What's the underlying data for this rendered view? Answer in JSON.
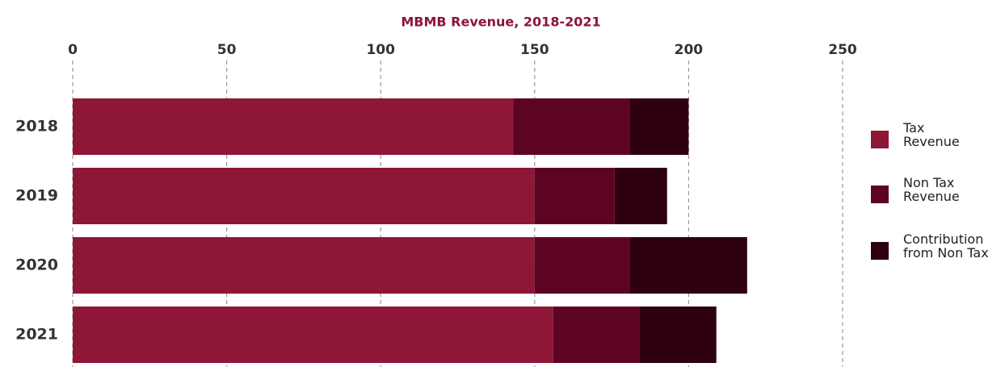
{
  "chart_data": {
    "type": "stacked-barh",
    "title": "MBMB Revenue, 2018-2021",
    "categories": [
      "2018",
      "2019",
      "2020",
      "2021"
    ],
    "series": [
      {
        "name": "Tax Revenue",
        "color": "#8e1737",
        "values": [
          143,
          150,
          150,
          156
        ]
      },
      {
        "name": "Non Tax Revenue",
        "color": "#5e0423",
        "values": [
          38,
          26,
          31,
          28
        ]
      },
      {
        "name": "Contribution from Non Tax",
        "color": "#2e0010",
        "values": [
          19,
          17,
          38,
          25
        ]
      }
    ],
    "xlim": [
      0,
      250
    ],
    "xticks": [
      0,
      50,
      100,
      150,
      200,
      250
    ],
    "grid": true,
    "legend": "right"
  }
}
